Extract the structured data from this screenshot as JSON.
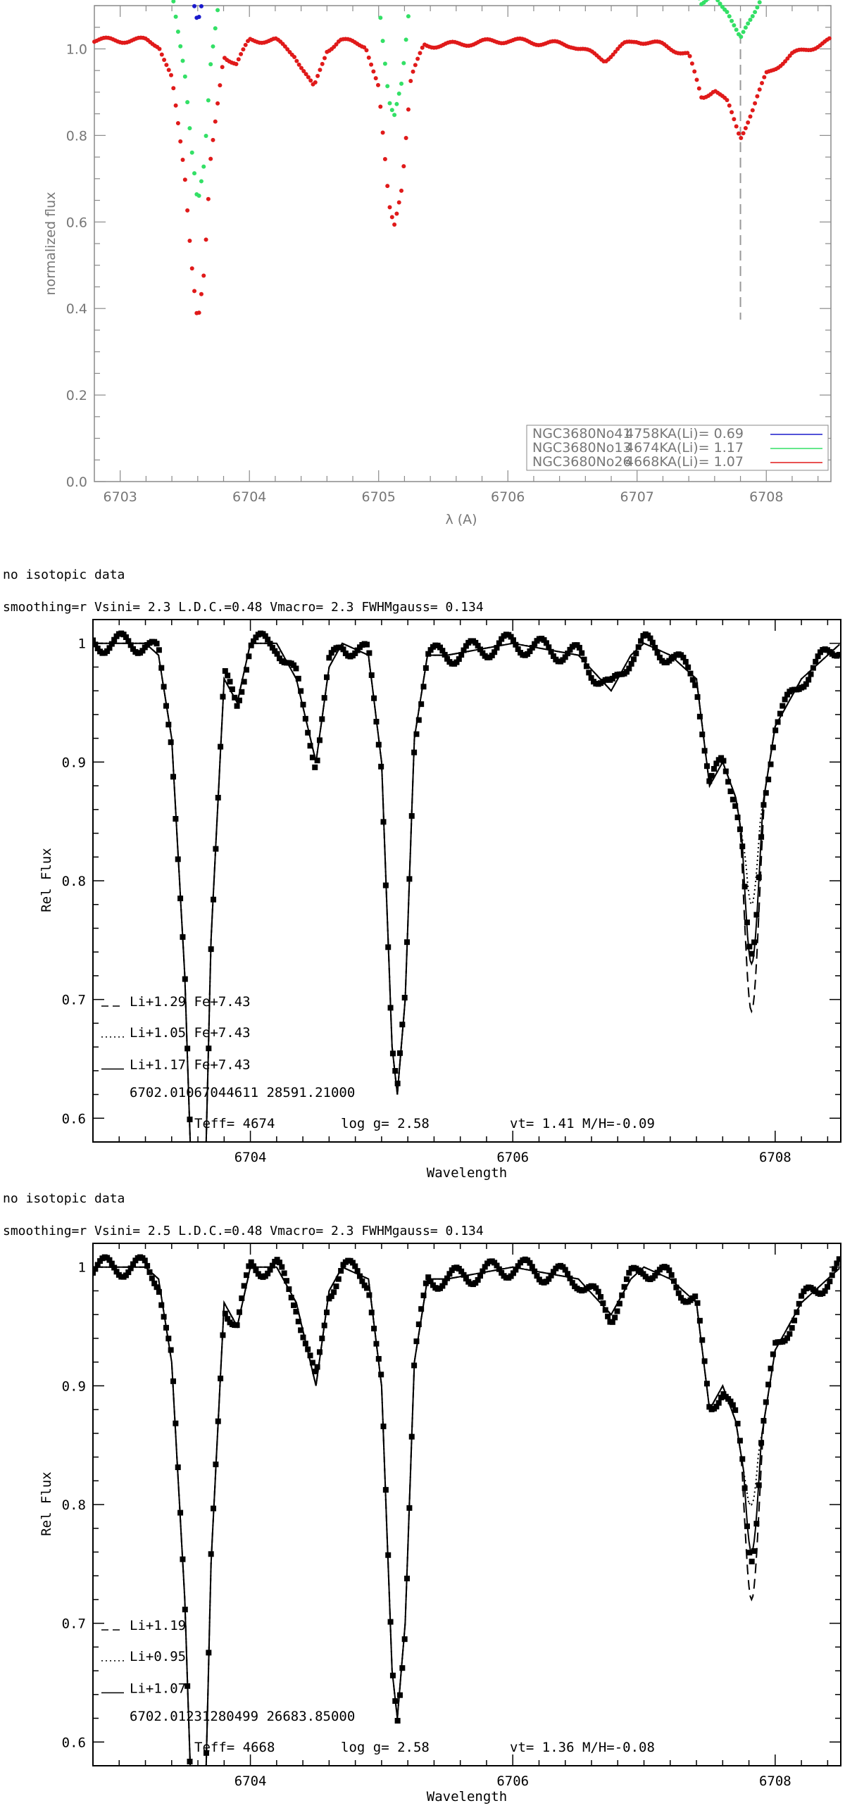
{
  "chart_data": [
    {
      "type": "scatter",
      "title": "",
      "xlabel": "λ (A)",
      "ylabel": "normalized flux",
      "xlim": [
        6702.8,
        6708.5
      ],
      "ylim": [
        0.0,
        1.1
      ],
      "xticks": [
        "6703",
        "6704",
        "6705",
        "6706",
        "6707",
        "6708"
      ],
      "yticks": [
        "0.0",
        "0.2",
        "0.4",
        "0.6",
        "0.8",
        "1.0"
      ],
      "vline_x": 6707.8,
      "legend_position": "bottom-right",
      "legend": [
        {
          "star": "NGC3680No41",
          "teff": "4758K",
          "ali": "A(Li)= 0.69",
          "color": "#1a1acc"
        },
        {
          "star": "NGC3680No13",
          "teff": "4674K",
          "ali": "A(Li)= 1.17",
          "color": "#33e066"
        },
        {
          "star": "NGC3680No26",
          "teff": "4668K",
          "ali": "A(Li)= 1.07",
          "color": "#e01a1a"
        }
      ],
      "series": [
        {
          "offset": 0.4,
          "color": "#1a1acc"
        },
        {
          "offset": 0.2,
          "color": "#33e066"
        },
        {
          "offset": 0.0,
          "color": "#e01a1a"
        }
      ],
      "spectrum_points": [
        [
          6702.8,
          1.0
        ],
        [
          6703.0,
          1.0
        ],
        [
          6703.2,
          1.0
        ],
        [
          6703.3,
          0.99
        ],
        [
          6703.4,
          0.92
        ],
        [
          6703.5,
          0.72
        ],
        [
          6703.55,
          0.55
        ],
        [
          6703.6,
          0.42
        ],
        [
          6703.65,
          0.52
        ],
        [
          6703.7,
          0.75
        ],
        [
          6703.8,
          0.97
        ],
        [
          6703.9,
          0.95
        ],
        [
          6704.0,
          1.0
        ],
        [
          6704.2,
          1.0
        ],
        [
          6704.35,
          0.97
        ],
        [
          6704.5,
          0.9
        ],
        [
          6704.6,
          0.98
        ],
        [
          6704.7,
          1.0
        ],
        [
          6704.9,
          0.99
        ],
        [
          6705.0,
          0.9
        ],
        [
          6705.08,
          0.66
        ],
        [
          6705.12,
          0.62
        ],
        [
          6705.18,
          0.7
        ],
        [
          6705.25,
          0.92
        ],
        [
          6705.35,
          0.99
        ],
        [
          6705.5,
          0.99
        ],
        [
          6706.0,
          1.0
        ],
        [
          6706.5,
          0.99
        ],
        [
          6706.75,
          0.96
        ],
        [
          6706.9,
          0.99
        ],
        [
          6707.0,
          1.0
        ],
        [
          6707.2,
          0.99
        ],
        [
          6707.4,
          0.97
        ],
        [
          6707.5,
          0.88
        ],
        [
          6707.6,
          0.9
        ],
        [
          6707.7,
          0.87
        ],
        [
          6707.8,
          0.8
        ],
        [
          6707.9,
          0.86
        ],
        [
          6708.0,
          0.93
        ],
        [
          6708.2,
          0.97
        ],
        [
          6708.4,
          0.99
        ],
        [
          6708.5,
          1.0
        ]
      ]
    },
    {
      "type": "scatter",
      "header_line1": "no isotopic data",
      "header_line2": "smoothing=r  Vsini=  2.3  L.D.C.=0.48  Vmacro= 2.3  FWHMgauss= 0.134",
      "xlabel": "Wavelength",
      "ylabel": "Rel  Flux",
      "xlim": [
        6702.8,
        6708.5
      ],
      "ylim": [
        0.58,
        1.02
      ],
      "xticks": [
        "6704",
        "6706",
        "6708"
      ],
      "yticks": [
        "0.6",
        "0.7",
        "0.8",
        "0.9",
        "1"
      ],
      "legend": [
        "Li+1.29  Fe+7.43",
        "Li+1.05  Fe+7.43",
        "Li+1.17  Fe+7.43"
      ],
      "info_line": "6702.01067044611 28591.21000",
      "teff": "Teff= 4674",
      "logg": "log g= 2.58",
      "vt": "vt= 1.41 M/H=-0.09",
      "li_depth": {
        "dashed": 0.74,
        "dotted": 0.83,
        "solid": 0.78
      }
    },
    {
      "type": "scatter",
      "header_line1": "no isotopic data",
      "header_line2": "smoothing=r  Vsini=  2.5  L.D.C.=0.48  Vmacro= 2.3  FWHMgauss= 0.134",
      "xlabel": "Wavelength",
      "ylabel": "Rel  Flux",
      "xlim": [
        6702.8,
        6708.5
      ],
      "ylim": [
        0.58,
        1.02
      ],
      "xticks": [
        "6704",
        "6706",
        "6708"
      ],
      "yticks": [
        "0.6",
        "0.7",
        "0.8",
        "0.9",
        "1"
      ],
      "legend": [
        "Li+1.19",
        "Li+0.95",
        "Li+1.07"
      ],
      "info_line": "6702.01231280499 26683.85000",
      "teff": "Teff= 4668",
      "logg": "log g= 2.58",
      "vt": "vt= 1.36 M/H=-0.08",
      "li_depth": {
        "dashed": 0.77,
        "dotted": 0.85,
        "solid": 0.81
      }
    }
  ]
}
